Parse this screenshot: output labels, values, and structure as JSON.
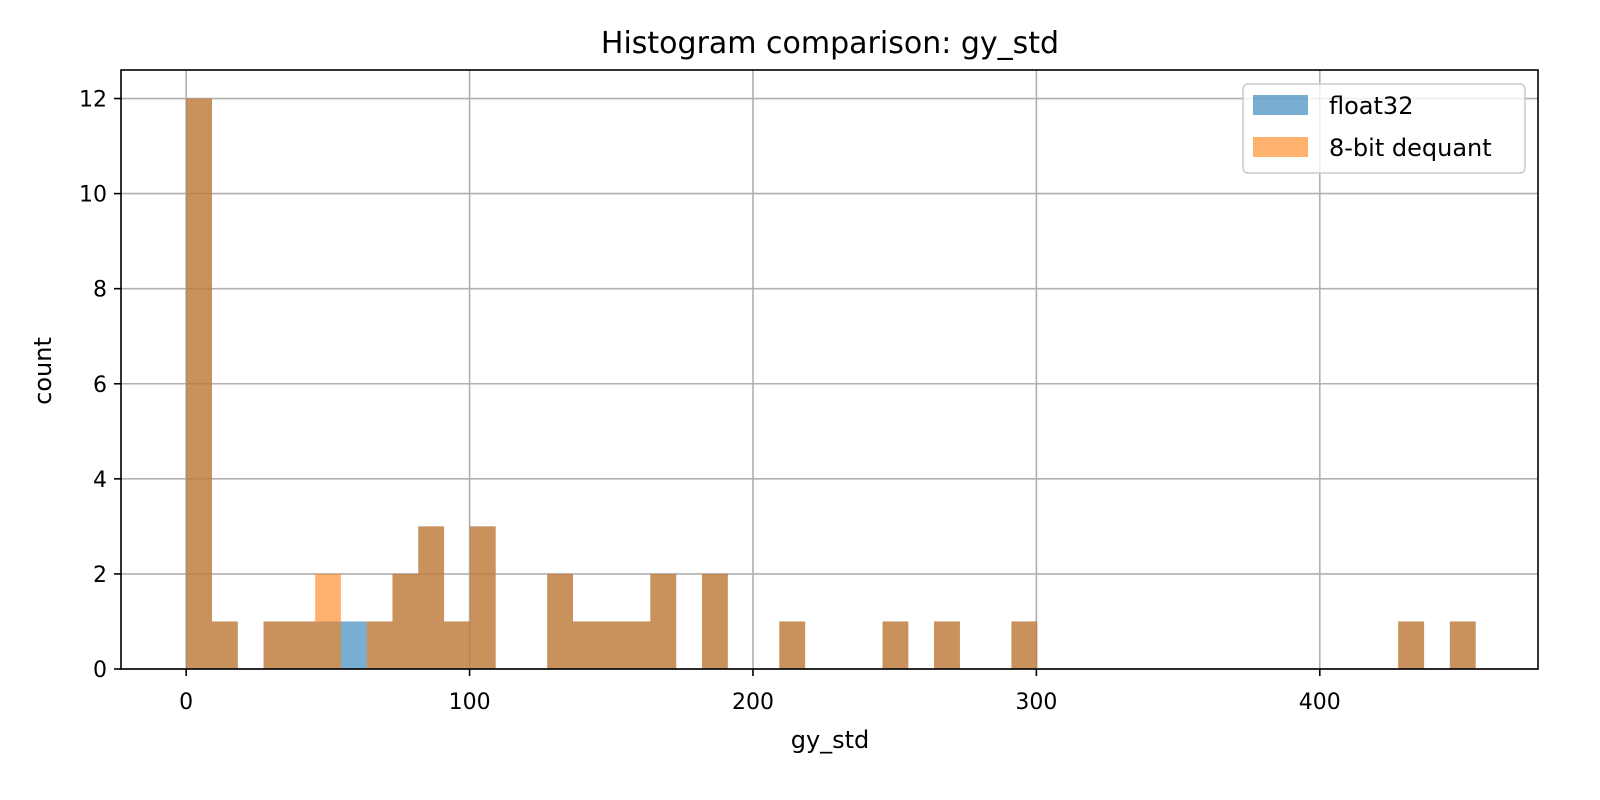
{
  "chart_data": {
    "type": "bar",
    "title": "Histogram comparison: gy_std",
    "xlabel": "gy_std",
    "ylabel": "count",
    "xlim": [
      -23,
      477
    ],
    "ylim": [
      0,
      12.6
    ],
    "xticks": [
      0,
      100,
      200,
      300,
      400
    ],
    "yticks": [
      0,
      2,
      4,
      6,
      8,
      10,
      12
    ],
    "grid": true,
    "legend_position": "top-right",
    "bin_width": 9.1,
    "series": [
      {
        "name": "float32",
        "color": "#1f77b4",
        "alpha": 0.6,
        "bins": [
          {
            "x0": 0,
            "count": 12
          },
          {
            "x0": 9.1,
            "count": 1
          },
          {
            "x0": 27.3,
            "count": 1
          },
          {
            "x0": 36.4,
            "count": 1
          },
          {
            "x0": 45.5,
            "count": 1
          },
          {
            "x0": 54.6,
            "count": 1
          },
          {
            "x0": 63.7,
            "count": 1
          },
          {
            "x0": 72.8,
            "count": 2
          },
          {
            "x0": 81.9,
            "count": 3
          },
          {
            "x0": 91.0,
            "count": 1
          },
          {
            "x0": 100.1,
            "count": 3
          },
          {
            "x0": 127.4,
            "count": 2
          },
          {
            "x0": 136.5,
            "count": 1
          },
          {
            "x0": 145.6,
            "count": 1
          },
          {
            "x0": 154.7,
            "count": 1
          },
          {
            "x0": 163.8,
            "count": 2
          },
          {
            "x0": 182.0,
            "count": 2
          },
          {
            "x0": 209.3,
            "count": 1
          },
          {
            "x0": 245.7,
            "count": 1
          },
          {
            "x0": 263.9,
            "count": 1
          },
          {
            "x0": 291.2,
            "count": 1
          },
          {
            "x0": 427.7,
            "count": 1
          },
          {
            "x0": 445.9,
            "count": 1
          }
        ]
      },
      {
        "name": "8-bit dequant",
        "color": "#ff7f0e",
        "alpha": 0.6,
        "bins": [
          {
            "x0": 0,
            "count": 12
          },
          {
            "x0": 9.1,
            "count": 1
          },
          {
            "x0": 27.3,
            "count": 1
          },
          {
            "x0": 36.4,
            "count": 1
          },
          {
            "x0": 45.5,
            "count": 2
          },
          {
            "x0": 63.7,
            "count": 1
          },
          {
            "x0": 72.8,
            "count": 2
          },
          {
            "x0": 81.9,
            "count": 3
          },
          {
            "x0": 91.0,
            "count": 1
          },
          {
            "x0": 100.1,
            "count": 3
          },
          {
            "x0": 127.4,
            "count": 2
          },
          {
            "x0": 136.5,
            "count": 1
          },
          {
            "x0": 145.6,
            "count": 1
          },
          {
            "x0": 154.7,
            "count": 1
          },
          {
            "x0": 163.8,
            "count": 2
          },
          {
            "x0": 182.0,
            "count": 2
          },
          {
            "x0": 209.3,
            "count": 1
          },
          {
            "x0": 245.7,
            "count": 1
          },
          {
            "x0": 263.9,
            "count": 1
          },
          {
            "x0": 291.2,
            "count": 1
          },
          {
            "x0": 427.7,
            "count": 1
          },
          {
            "x0": 445.9,
            "count": 1
          }
        ]
      }
    ]
  }
}
